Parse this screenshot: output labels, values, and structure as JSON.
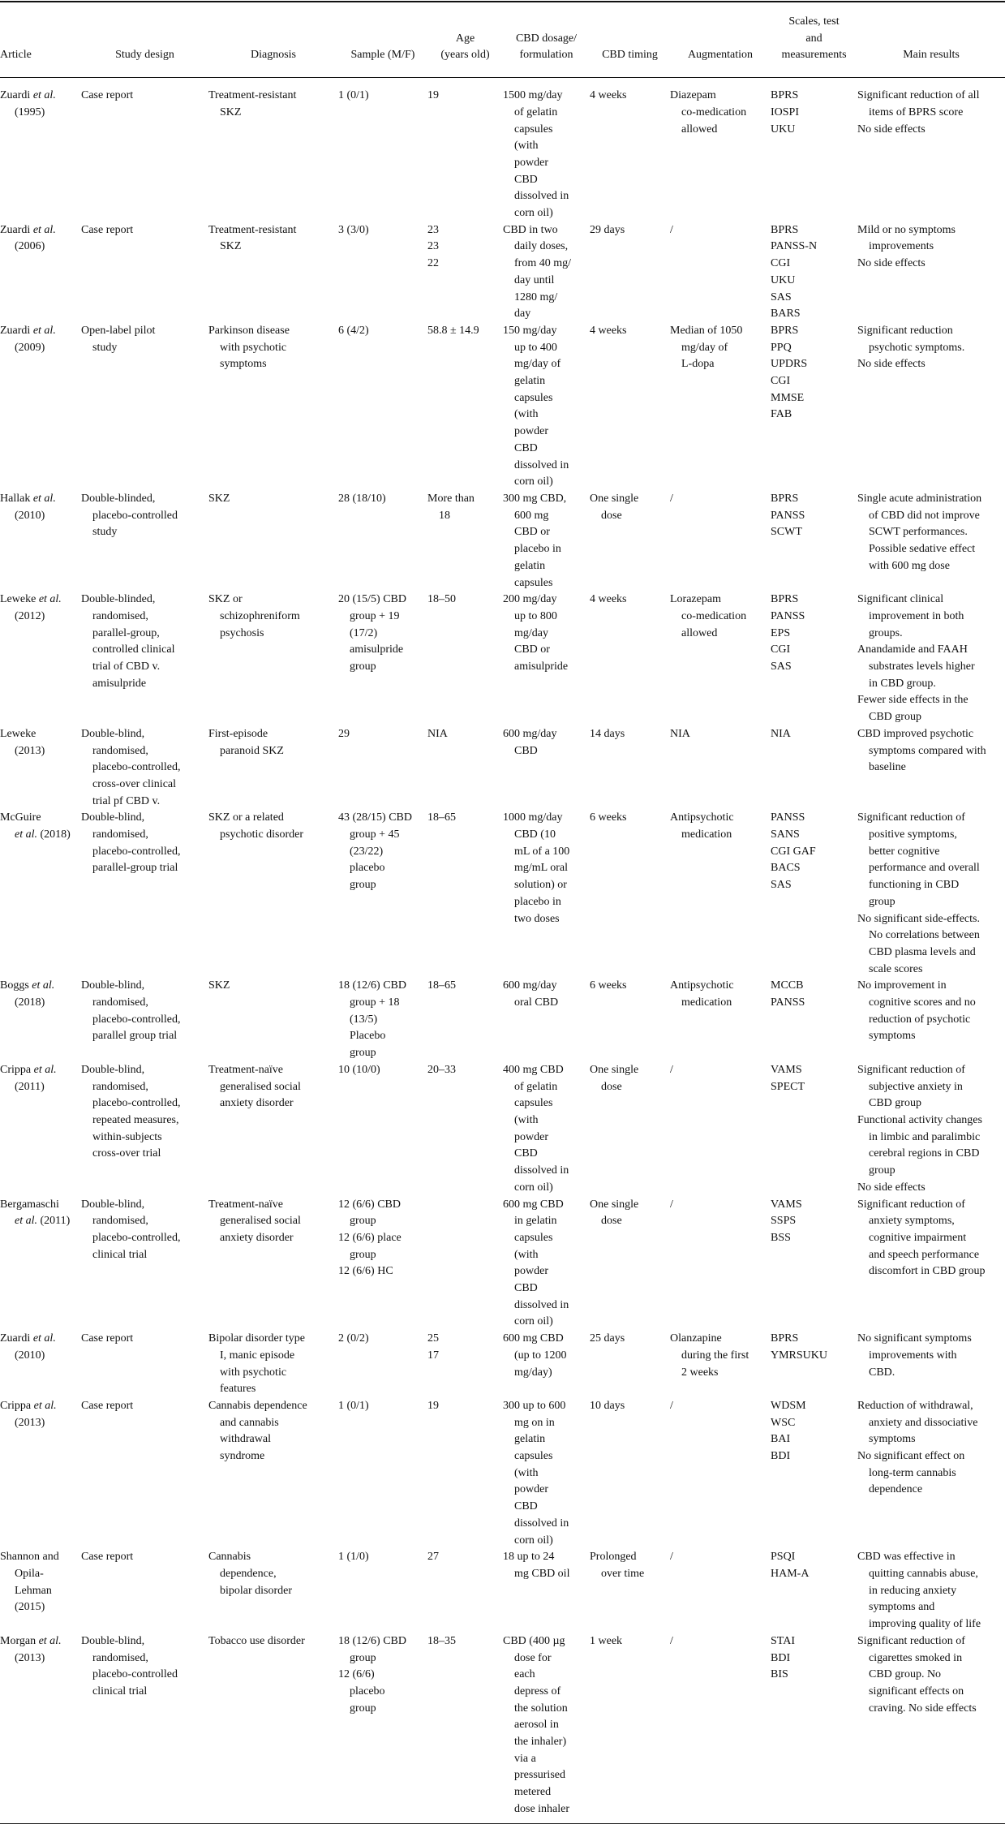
{
  "headers": {
    "article": "Article",
    "design": "Study design",
    "diagnosis": "Diagnosis",
    "sample": "Sample (M/F)",
    "age": "Age\n(years old)",
    "dosage": "CBD dosage/\nformulation",
    "timing": "CBD timing",
    "augmentation": "Augmentation",
    "scales": "Scales, test\nand\nmeasurements",
    "results": "Main results"
  },
  "rows": [
    {
      "article": [
        "Zuardi et al.\n(1995)"
      ],
      "design": [
        "Case report"
      ],
      "diagnosis": [
        "Treatment-resistant\nSKZ"
      ],
      "sample": [
        "1 (0/1)"
      ],
      "age": [
        "19"
      ],
      "dosage": [
        "1500 mg/day\nof gelatin\ncapsules\n(with\npowder\nCBD\ndissolved in\ncorn oil)"
      ],
      "timing": [
        "4 weeks"
      ],
      "augmentation": [
        "Diazepam\nco-medication\nallowed"
      ],
      "scales": [
        "BPRS",
        "IOSPI",
        "UKU"
      ],
      "results": [
        "Significant reduction of all\nitems of BPRS score",
        "No side effects"
      ]
    },
    {
      "article": [
        "Zuardi et al.\n(2006)"
      ],
      "design": [
        "Case report"
      ],
      "diagnosis": [
        "Treatment-resistant\nSKZ"
      ],
      "sample": [
        "3 (3/0)"
      ],
      "age": [
        "23",
        "23",
        "22"
      ],
      "dosage": [
        "CBD in two\ndaily doses,\nfrom 40 mg/\nday until\n1280 mg/\nday"
      ],
      "timing": [
        "29 days"
      ],
      "augmentation": [
        "/"
      ],
      "scales": [
        "BPRS",
        "PANSS-N",
        "CGI",
        "UKU",
        "SAS",
        "BARS"
      ],
      "results": [
        "Mild or no symptoms\nimprovements",
        "No side effects"
      ]
    },
    {
      "article": [
        "Zuardi et al.\n(2009)"
      ],
      "design": [
        "Open-label pilot\nstudy"
      ],
      "diagnosis": [
        "Parkinson disease\nwith psychotic\nsymptoms"
      ],
      "sample": [
        "6 (4/2)"
      ],
      "age": [
        "58.8 ± 14.9"
      ],
      "dosage": [
        "150 mg/day\nup to 400\nmg/day of\ngelatin\ncapsules\n(with\npowder\nCBD\ndissolved in\ncorn oil)"
      ],
      "timing": [
        "4 weeks"
      ],
      "augmentation": [
        "Median of 1050\nmg/day of\nL-dopa"
      ],
      "scales": [
        "BPRS",
        "PPQ",
        "UPDRS",
        "CGI",
        "MMSE",
        "FAB"
      ],
      "results": [
        "Significant reduction\npsychotic symptoms.",
        "No side effects"
      ]
    },
    {
      "article": [
        "Hallak et al.\n(2010)"
      ],
      "design": [
        "Double-blinded,\nplacebo-controlled\nstudy"
      ],
      "diagnosis": [
        "SKZ"
      ],
      "sample": [
        "28 (18/10)"
      ],
      "age": [
        "More than\n18"
      ],
      "dosage": [
        "300 mg CBD,\n600 mg\nCBD or\nplacebo in\ngelatin\ncapsules"
      ],
      "timing": [
        "One single\ndose"
      ],
      "augmentation": [
        "/"
      ],
      "scales": [
        "BPRS",
        "PANSS",
        "SCWT"
      ],
      "results": [
        "Single acute administration\nof CBD did not improve\nSCWT performances.\nPossible sedative effect\nwith 600 mg dose"
      ]
    },
    {
      "article": [
        "Leweke et al.\n(2012)"
      ],
      "design": [
        "Double-blinded,\nrandomised,\nparallel-group,\ncontrolled clinical\ntrial of CBD v.\namisulpride"
      ],
      "diagnosis": [
        "SKZ or\nschizophreniform\npsychosis"
      ],
      "sample": [
        "20 (15/5) CBD\ngroup + 19\n(17/2)\namisulpride\ngroup"
      ],
      "age": [
        "18–50"
      ],
      "dosage": [
        "200 mg/day\nup to 800\nmg/day\nCBD or\namisulpride"
      ],
      "timing": [
        "4 weeks"
      ],
      "augmentation": [
        "Lorazepam\nco-medication\nallowed"
      ],
      "scales": [
        "BPRS",
        "PANSS",
        "EPS",
        "CGI",
        "SAS"
      ],
      "results": [
        "Significant clinical\nimprovement in both\ngroups.",
        "Anandamide and FAAH\nsubstrates levels higher\nin CBD group.",
        "Fewer side effects in the\nCBD group"
      ]
    },
    {
      "article": [
        "Leweke\n(2013)"
      ],
      "design": [
        "Double-blind,\nrandomised,\nplacebo-controlled,\ncross-over clinical\ntrial pf CBD v."
      ],
      "diagnosis": [
        "First-episode\nparanoid SKZ"
      ],
      "sample": [
        "29"
      ],
      "age": [
        "NIA"
      ],
      "dosage": [
        "600 mg/day\nCBD"
      ],
      "timing": [
        "14 days"
      ],
      "augmentation": [
        "NIA"
      ],
      "scales": [
        "NIA"
      ],
      "results": [
        "CBD improved psychotic\nsymptoms compared with\nbaseline"
      ]
    },
    {
      "article": [
        "McGuire\net al. (2018)"
      ],
      "design": [
        "Double-blind,\nrandomised,\nplacebo-controlled,\nparallel-group trial"
      ],
      "diagnosis": [
        "SKZ or a related\npsychotic disorder"
      ],
      "sample": [
        "43 (28/15) CBD\ngroup + 45\n(23/22)\nplacebo\ngroup"
      ],
      "age": [
        "18–65"
      ],
      "dosage": [
        "1000 mg/day\nCBD (10\nmL of a 100\nmg/mL oral\nsolution) or\nplacebo in\ntwo doses"
      ],
      "timing": [
        "6 weeks"
      ],
      "augmentation": [
        "Antipsychotic\nmedication"
      ],
      "scales": [
        "PANSS",
        "SANS",
        "CGI GAF",
        "BACS",
        "SAS"
      ],
      "results": [
        "Significant reduction of\npositive symptoms,\nbetter cognitive\nperformance and overall\nfunctioning in CBD\ngroup",
        "No significant side-effects.\nNo correlations between\nCBD plasma levels and\nscale scores"
      ]
    },
    {
      "article": [
        "Boggs et al.\n(2018)"
      ],
      "design": [
        "Double-blind,\nrandomised,\nplacebo-controlled,\nparallel group trial"
      ],
      "diagnosis": [
        "SKZ"
      ],
      "sample": [
        "18 (12/6) CBD\ngroup + 18\n(13/5)\nPlacebo\ngroup"
      ],
      "age": [
        "18–65"
      ],
      "dosage": [
        "600 mg/day\noral CBD"
      ],
      "timing": [
        "6 weeks"
      ],
      "augmentation": [
        "Antipsychotic\nmedication"
      ],
      "scales": [
        "MCCB",
        "PANSS"
      ],
      "results": [
        "No improvement in\ncognitive scores and no\nreduction of psychotic\nsymptoms"
      ]
    },
    {
      "article": [
        "Crippa et al.\n(2011)"
      ],
      "design": [
        "Double-blind,\nrandomised,\nplacebo-controlled,\nrepeated measures,\nwithin-subjects\ncross-over trial"
      ],
      "diagnosis": [
        "Treatment-naïve\ngeneralised social\nanxiety disorder"
      ],
      "sample": [
        "10 (10/0)"
      ],
      "age": [
        "20–33"
      ],
      "dosage": [
        "400 mg CBD\nof gelatin\ncapsules\n(with\npowder\nCBD\ndissolved in\ncorn oil)"
      ],
      "timing": [
        "One single\ndose"
      ],
      "augmentation": [
        "/"
      ],
      "scales": [
        "VAMS",
        "SPECT"
      ],
      "results": [
        "Significant reduction of\nsubjective anxiety in\nCBD group",
        "Functional activity changes\nin limbic and paralimbic\ncerebral regions in CBD\ngroup",
        "No side effects"
      ]
    },
    {
      "article": [
        "Bergamaschi\net al. (2011)"
      ],
      "design": [
        "Double-blind,\nrandomised,\nplacebo-controlled,\nclinical trial"
      ],
      "diagnosis": [
        "Treatment-naïve\ngeneralised social\nanxiety disorder"
      ],
      "sample": [
        "12 (6/6) CBD\ngroup",
        "12 (6/6) place\ngroup",
        "12 (6/6) HC"
      ],
      "age": [],
      "dosage": [
        "600 mg CBD\nin gelatin\ncapsules\n(with\npowder\nCBD\ndissolved in\ncorn oil)"
      ],
      "timing": [
        "One single\ndose"
      ],
      "augmentation": [
        "/"
      ],
      "scales": [
        "VAMS",
        "SSPS",
        "BSS"
      ],
      "results": [
        "Significant reduction of\nanxiety symptoms,\ncognitive impairment\nand speech performance\ndiscomfort in CBD group"
      ]
    },
    {
      "article": [
        "Zuardi et al.\n(2010)"
      ],
      "design": [
        "Case report"
      ],
      "diagnosis": [
        "Bipolar disorder type\nI, manic episode\nwith psychotic\nfeatures"
      ],
      "sample": [
        "2 (0/2)"
      ],
      "age": [
        "25",
        "17"
      ],
      "dosage": [
        "600 mg CBD\n(up to 1200\nmg/day)"
      ],
      "timing": [
        "25 days"
      ],
      "augmentation": [
        "Olanzapine\nduring the first\n2 weeks"
      ],
      "scales": [
        "BPRS",
        "YMRSUKU"
      ],
      "results": [
        "No significant symptoms\nimprovements with\nCBD."
      ]
    },
    {
      "article": [
        "Crippa et al.\n(2013)"
      ],
      "design": [
        "Case report"
      ],
      "diagnosis": [
        "Cannabis dependence\nand cannabis\nwithdrawal\nsyndrome"
      ],
      "sample": [
        "1 (0/1)"
      ],
      "age": [
        "19"
      ],
      "dosage": [
        "300 up to 600\nmg on in\ngelatin\ncapsules\n(with\npowder\nCBD\ndissolved in\ncorn oil)"
      ],
      "timing": [
        "10 days"
      ],
      "augmentation": [
        "/"
      ],
      "scales": [
        "WDSM",
        "WSC",
        "BAI",
        "BDI"
      ],
      "results": [
        "Reduction of withdrawal,\nanxiety and dissociative\nsymptoms",
        "No significant effect on\nlong-term cannabis\ndependence"
      ]
    },
    {
      "article": [
        "Shannon and\nOpila-\nLehman\n(2015)"
      ],
      "design": [
        "Case report"
      ],
      "diagnosis": [
        "Cannabis\ndependence,\nbipolar disorder"
      ],
      "sample": [
        "1 (1/0)"
      ],
      "age": [
        "27"
      ],
      "dosage": [
        "18 up to 24\nmg CBD oil"
      ],
      "timing": [
        "Prolonged\nover time"
      ],
      "augmentation": [
        "/"
      ],
      "scales": [
        "PSQI",
        "HAM-A"
      ],
      "results": [
        "CBD was effective in\nquitting cannabis abuse,\nin reducing anxiety\nsymptoms and\nimproving quality of life"
      ]
    },
    {
      "article": [
        "Morgan et al.\n(2013)"
      ],
      "design": [
        "Double-blind,\nrandomised,\nplacebo-controlled\nclinical trial"
      ],
      "diagnosis": [
        "Tobacco use disorder"
      ],
      "sample": [
        "18 (12/6) CBD\ngroup",
        "12 (6/6)\nplacebo\ngroup"
      ],
      "age": [
        "18–35"
      ],
      "dosage": [
        "CBD (400 µg\ndose for\neach\ndepress of\nthe solution\naerosol in\nthe inhaler)\nvia a\npressurised\nmetered\ndose inhaler"
      ],
      "timing": [
        "1 week"
      ],
      "augmentation": [
        "/"
      ],
      "scales": [
        "STAI",
        "BDI",
        "BIS"
      ],
      "results": [
        "Significant reduction of\ncigarettes smoked in\nCBD group. No\nsignificant effects on\ncraving. No side effects"
      ]
    }
  ]
}
